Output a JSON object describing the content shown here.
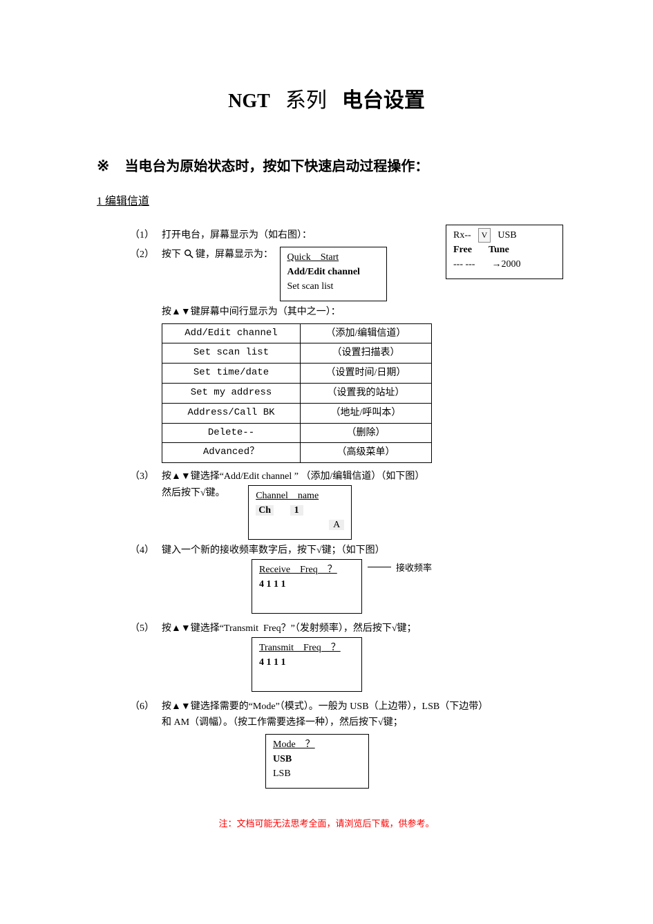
{
  "title": {
    "ngt": "NGT",
    "series": "系列",
    "setup": "电台设置"
  },
  "star_line": {
    "star": "※",
    "text": "当电台为原始状态时，按如下快速启动过程操作："
  },
  "section1": "1 编辑信道",
  "rx_box": {
    "l1a": "Rx--",
    "l1b": "V",
    "l1c": "USB",
    "l2a": "Free",
    "l2b": "Tune",
    "l3a": "--- ---",
    "l3b": "→2000"
  },
  "steps": {
    "s1": {
      "num": "（1）",
      "txt": "打开电台，屏幕显示为（如右图）："
    },
    "s2": {
      "num": "（2）",
      "txt_a": "按下",
      "txt_b": "键，屏幕显示为：",
      "box": {
        "l1": "Quick Start",
        "l2": "Add/Edit channel",
        "l3": "Set scan list"
      },
      "mid_line": "按▲▼键屏幕中间行显示为（其中之一）：",
      "menu": [
        {
          "en": "Add/Edit channel",
          "cn": "（添加/编辑信道）"
        },
        {
          "en": "Set scan list",
          "cn": "（设置扫描表）"
        },
        {
          "en": "Set time/date",
          "cn": "（设置时间/日期）"
        },
        {
          "en": "Set my address",
          "cn": "（设置我的站址）"
        },
        {
          "en": "Address/Call BK",
          "cn": "（地址/呼叫本）"
        },
        {
          "en": "Delete--",
          "cn": "（删除）"
        },
        {
          "en": "Advanced？",
          "cn": "（高级菜单）"
        }
      ]
    },
    "s3": {
      "num": "（3）",
      "txt1": "按▲▼键选择“Add/Edit channel ” （添加/编辑信道）（如下图）",
      "txt2": "然后按下√键。",
      "box": {
        "l1": "Channel name",
        "l2a": "Ch",
        "l2b": "1",
        "l3": "A"
      }
    },
    "s4": {
      "num": "（4）",
      "txt": "键入一个新的接收频率数字后，按下√键；（如下图）",
      "box": {
        "l1": "Receive Freq ？",
        "l2": "4 1 1 1"
      },
      "note": "接收频率"
    },
    "s5": {
      "num": "（5）",
      "txt": "按▲▼键选择“Transmit  Freq？”（发射频率），然后按下√键；",
      "box": {
        "l1": "Transmit Freq ？",
        "l2": "4 1 1 1"
      }
    },
    "s6": {
      "num": "（6）",
      "txt1": "按▲▼键选择需要的“Mode”（模式）。一般为 USB（上边带），LSB（下边带）",
      "txt2": "和 AM（调幅）。（按工作需要选择一种），然后按下√键；",
      "box": {
        "l1": "Mode ？",
        "l2": "USB",
        "l3": "LSB"
      }
    }
  },
  "footer": "注：文档可能无法思考全面，请浏览后下载，供参考。"
}
